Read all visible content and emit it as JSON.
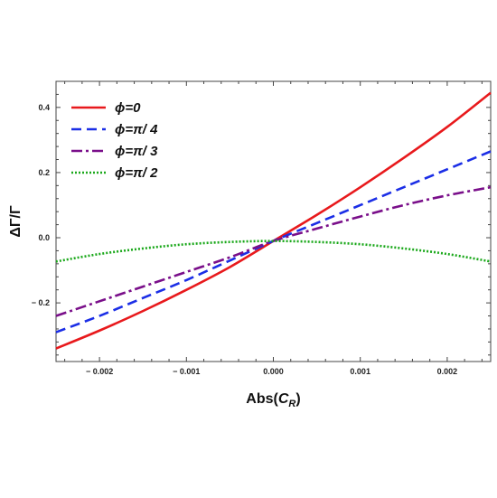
{
  "chart_data": {
    "type": "line",
    "xlabel_prefix": "Abs(",
    "xlabel_var": "C",
    "xlabel_sub": "R",
    "xlabel_suffix": ")",
    "ylabel": "ΔΓ/Γ",
    "xlim": [
      -0.0025,
      0.0025
    ],
    "ylim": [
      -0.38,
      0.48
    ],
    "xticks": [
      -0.002,
      -0.001,
      0.0,
      0.001,
      0.002
    ],
    "xtick_labels": [
      "− 0.002",
      "− 0.001",
      "0.000",
      "0.001",
      "0.002"
    ],
    "yticks": [
      -0.2,
      0.0,
      0.2,
      0.4
    ],
    "ytick_labels": [
      "− 0.2",
      "0.0",
      "0.2",
      "0.4"
    ],
    "grid": false,
    "legend_position": "top-left",
    "series": [
      {
        "name": "ϕ=0",
        "color": "#e8191c",
        "style": "solid",
        "x": [
          -0.0025,
          -0.002,
          -0.0015,
          -0.001,
          -0.0005,
          0.0,
          0.0005,
          0.001,
          0.0015,
          0.002,
          0.0025
        ],
        "y": [
          -0.34,
          -0.285,
          -0.225,
          -0.16,
          -0.09,
          -0.01,
          0.07,
          0.155,
          0.245,
          0.34,
          0.445
        ]
      },
      {
        "name": "ϕ=π/ 4",
        "color": "#1b2ee6",
        "style": "dashed",
        "x": [
          -0.0025,
          -0.002,
          -0.0015,
          -0.001,
          -0.0005,
          0.0,
          0.0005,
          0.001,
          0.0015,
          0.002,
          0.0025
        ],
        "y": [
          -0.29,
          -0.24,
          -0.185,
          -0.13,
          -0.07,
          -0.01,
          0.045,
          0.1,
          0.155,
          0.21,
          0.265
        ]
      },
      {
        "name": "ϕ=π/ 3",
        "color": "#7a0f8a",
        "style": "dashdot",
        "x": [
          -0.0025,
          -0.002,
          -0.0015,
          -0.001,
          -0.0005,
          0.0,
          0.0005,
          0.001,
          0.0015,
          0.002,
          0.0025
        ],
        "y": [
          -0.24,
          -0.195,
          -0.15,
          -0.105,
          -0.06,
          -0.01,
          0.028,
          0.065,
          0.1,
          0.13,
          0.155
        ]
      },
      {
        "name": "ϕ=π/ 2",
        "color": "#1aa81a",
        "style": "dotted",
        "x": [
          -0.0025,
          -0.002,
          -0.0015,
          -0.001,
          -0.0005,
          0.0,
          0.0005,
          0.001,
          0.0015,
          0.002,
          0.0025
        ],
        "y": [
          -0.073,
          -0.05,
          -0.033,
          -0.02,
          -0.013,
          -0.01,
          -0.013,
          -0.02,
          -0.033,
          -0.05,
          -0.073
        ]
      }
    ]
  }
}
